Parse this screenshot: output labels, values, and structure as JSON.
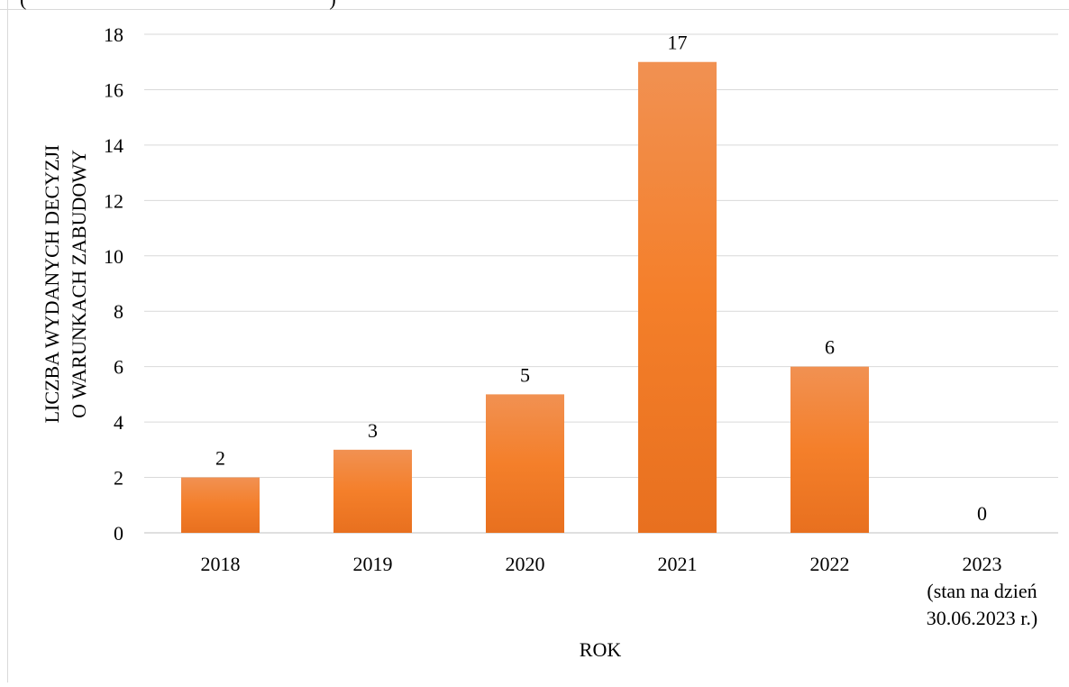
{
  "chart_data": {
    "type": "bar",
    "title": "",
    "partial_top_text_left": "(",
    "partial_top_text_right": ")",
    "xlabel": "ROK",
    "ylabel_lines": [
      "LICZBA WYDANYCH  DECYZJI",
      "O WARUNKACH ZABUDOWY"
    ],
    "categories": [
      [
        "2018"
      ],
      [
        "2019"
      ],
      [
        "2020"
      ],
      [
        "2021"
      ],
      [
        "2022"
      ],
      [
        "2023",
        "(stan na dzień",
        "30.06.2023 r.)"
      ]
    ],
    "values": [
      2,
      3,
      5,
      17,
      6,
      0
    ],
    "data_labels": [
      "2",
      "3",
      "5",
      "17",
      "6",
      "0"
    ],
    "ylim": [
      0,
      18
    ],
    "yticks": [
      0,
      2,
      4,
      6,
      8,
      10,
      12,
      14,
      16,
      18
    ],
    "grid": true,
    "legend": "none",
    "colors": {
      "bar_top": "#f19152",
      "bar_mid": "#f47f2a",
      "bar_bottom": "#e8701f",
      "grid": "#d9d9d9",
      "axis": "#bfbfbf",
      "text": "#000000"
    }
  }
}
